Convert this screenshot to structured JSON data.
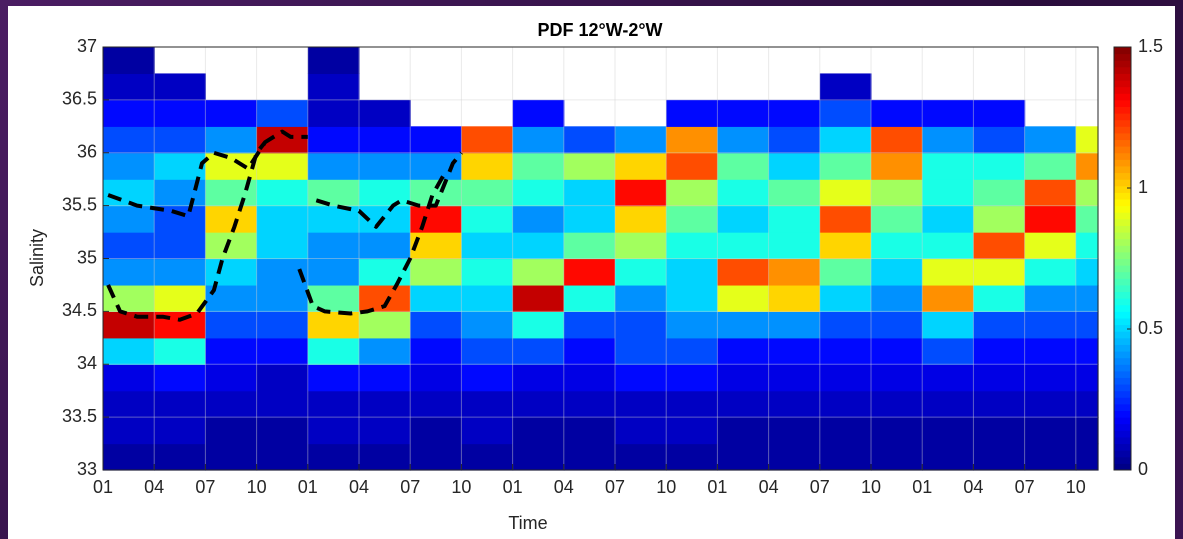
{
  "chart_data": {
    "type": "heatmap",
    "title": "PDF 12°W-2°W",
    "x_label": "Time",
    "y_label": "Salinity",
    "xlim": [
      0,
      58.3
    ],
    "ylim": [
      33,
      37
    ],
    "xticks": [
      {
        "value": 0,
        "label": "01"
      },
      {
        "value": 3,
        "label": "04"
      },
      {
        "value": 6,
        "label": "07"
      },
      {
        "value": 9,
        "label": "10"
      },
      {
        "value": 12,
        "label": "01"
      },
      {
        "value": 15,
        "label": "04"
      },
      {
        "value": 18,
        "label": "07"
      },
      {
        "value": 21,
        "label": "10"
      },
      {
        "value": 24,
        "label": "01"
      },
      {
        "value": 27,
        "label": "04"
      },
      {
        "value": 30,
        "label": "07"
      },
      {
        "value": 33,
        "label": "10"
      },
      {
        "value": 36,
        "label": "01"
      },
      {
        "value": 39,
        "label": "04"
      },
      {
        "value": 42,
        "label": "07"
      },
      {
        "value": 45,
        "label": "10"
      },
      {
        "value": 48,
        "label": "01"
      },
      {
        "value": 51,
        "label": "04"
      },
      {
        "value": 54,
        "label": "07"
      },
      {
        "value": 57,
        "label": "10"
      }
    ],
    "yticks": [
      33,
      33.5,
      34,
      34.5,
      35,
      35.5,
      36,
      36.5,
      37
    ],
    "grid": true,
    "colormap": "jet",
    "clim": [
      0,
      1.5
    ],
    "colorbar_ticks": [
      0,
      0.5,
      1,
      1.5
    ],
    "xbins": [
      0,
      3,
      6,
      9,
      12,
      15,
      18,
      21,
      24,
      27,
      30,
      33,
      36,
      39,
      42,
      45,
      48,
      51,
      54,
      57,
      58.3
    ],
    "ybins": [
      33,
      33.25,
      33.5,
      33.75,
      34,
      34.25,
      34.5,
      34.75,
      35,
      35.25,
      35.5,
      35.75,
      36,
      36.25,
      36.5,
      36.75,
      37
    ],
    "z": [
      [
        0.05,
        0.1,
        0.1,
        0.15,
        0.5,
        1.4,
        0.8,
        0.4,
        0.3,
        0.4,
        0.5,
        0.4,
        0.3,
        0.2,
        0.1,
        0.05
      ],
      [
        0.05,
        0.1,
        0.1,
        0.2,
        0.6,
        1.3,
        0.9,
        0.4,
        0.3,
        0.3,
        0.4,
        0.5,
        0.3,
        0.2,
        0.1,
        null
      ],
      [
        0.05,
        0.05,
        0.1,
        0.15,
        0.2,
        0.3,
        0.4,
        0.5,
        0.8,
        1.0,
        0.7,
        0.9,
        0.4,
        0.2,
        null,
        null
      ],
      [
        0.05,
        0.05,
        0.1,
        0.1,
        0.2,
        0.3,
        0.4,
        0.4,
        0.5,
        0.5,
        0.6,
        0.9,
        1.4,
        0.3,
        null,
        null
      ],
      [
        0.05,
        0.1,
        0.1,
        0.2,
        0.6,
        1.0,
        0.7,
        0.4,
        0.4,
        0.5,
        0.7,
        0.4,
        0.2,
        0.1,
        0.1,
        0.05
      ],
      [
        0.05,
        0.1,
        0.1,
        0.2,
        0.4,
        0.8,
        1.2,
        0.6,
        0.4,
        0.5,
        0.6,
        0.4,
        0.2,
        0.1,
        null,
        null
      ],
      [
        0.05,
        0.05,
        0.1,
        0.15,
        0.2,
        0.3,
        0.5,
        0.8,
        1.0,
        1.3,
        0.7,
        0.4,
        0.2,
        null,
        null,
        null
      ],
      [
        0.05,
        0.1,
        0.1,
        0.2,
        0.3,
        0.4,
        0.5,
        0.6,
        0.5,
        0.6,
        0.7,
        1.0,
        1.2,
        null,
        null,
        null
      ],
      [
        0.05,
        0.05,
        0.1,
        0.15,
        0.3,
        0.6,
        1.4,
        0.8,
        0.5,
        0.4,
        0.6,
        0.7,
        0.4,
        0.2,
        null,
        null
      ],
      [
        0.05,
        0.05,
        0.1,
        0.15,
        0.2,
        0.3,
        0.6,
        1.3,
        0.7,
        0.5,
        0.5,
        0.8,
        0.3,
        null,
        null,
        null
      ],
      [
        0.05,
        0.1,
        0.1,
        0.2,
        0.3,
        0.3,
        0.4,
        0.6,
        0.8,
        1.0,
        1.3,
        1.0,
        0.4,
        null,
        null,
        null
      ],
      [
        0.05,
        0.1,
        0.1,
        0.2,
        0.3,
        0.4,
        0.5,
        0.5,
        0.6,
        0.7,
        0.8,
        1.2,
        1.1,
        0.2,
        null,
        null
      ],
      [
        0.05,
        0.05,
        0.1,
        0.15,
        0.2,
        0.4,
        0.9,
        1.2,
        0.6,
        0.5,
        0.6,
        0.7,
        0.4,
        0.2,
        null,
        null
      ],
      [
        0.05,
        0.05,
        0.1,
        0.15,
        0.2,
        0.4,
        1.0,
        1.1,
        0.6,
        0.6,
        0.7,
        0.5,
        0.3,
        0.2,
        null,
        null
      ],
      [
        0.05,
        0.05,
        0.1,
        0.15,
        0.2,
        0.3,
        0.5,
        0.7,
        1.0,
        1.2,
        0.9,
        0.7,
        0.5,
        0.3,
        0.1,
        null
      ],
      [
        0.05,
        0.05,
        0.1,
        0.15,
        0.2,
        0.3,
        0.4,
        0.5,
        0.6,
        0.7,
        0.8,
        1.1,
        1.2,
        0.2,
        null,
        null
      ],
      [
        0.05,
        0.05,
        0.1,
        0.15,
        0.3,
        0.5,
        1.1,
        0.9,
        0.6,
        0.5,
        0.6,
        0.6,
        0.4,
        0.2,
        null,
        null
      ],
      [
        0.05,
        0.05,
        0.1,
        0.15,
        0.2,
        0.3,
        0.6,
        0.9,
        1.2,
        0.8,
        0.7,
        0.6,
        0.3,
        0.2,
        null,
        null
      ],
      [
        0.05,
        0.05,
        0.1,
        0.15,
        0.2,
        0.3,
        0.4,
        0.6,
        0.9,
        1.3,
        1.2,
        0.7,
        0.4,
        null,
        null,
        null
      ],
      [
        0.05,
        0.05,
        0.1,
        0.15,
        0.2,
        0.3,
        0.4,
        0.5,
        0.6,
        0.7,
        0.8,
        1.1,
        0.9,
        null,
        null,
        null
      ]
    ],
    "line": {
      "color": "#000000",
      "x": [
        0.3,
        2,
        4,
        5,
        5.8,
        6.5,
        7.5,
        8.5,
        9.5,
        10.5,
        11,
        12,
        null,
        0.3,
        1,
        2,
        3.5,
        4.5,
        5.5,
        6.5,
        7,
        7.7,
        8.3,
        9,
        9.5,
        null,
        12.5,
        13.5,
        15,
        16,
        17,
        17.5,
        18.5,
        19.5,
        20.5,
        21,
        null,
        11.5,
        12.3,
        13,
        14.5,
        15.5,
        16.5,
        17.2,
        18,
        18.7,
        19.3,
        20
      ],
      "values": [
        35.6,
        35.5,
        35.45,
        35.4,
        35.9,
        36.0,
        35.95,
        35.85,
        36.1,
        36.2,
        36.15,
        36.15,
        null,
        34.75,
        34.5,
        34.45,
        34.45,
        34.42,
        34.48,
        34.7,
        35.0,
        35.3,
        35.6,
        36.0,
        36.1,
        null,
        35.55,
        35.5,
        35.45,
        35.3,
        35.5,
        35.55,
        35.5,
        35.5,
        35.9,
        36.0,
        null,
        34.9,
        34.55,
        34.5,
        34.48,
        34.5,
        34.55,
        34.75,
        35.0,
        35.3,
        35.6,
        35.8
      ]
    }
  }
}
